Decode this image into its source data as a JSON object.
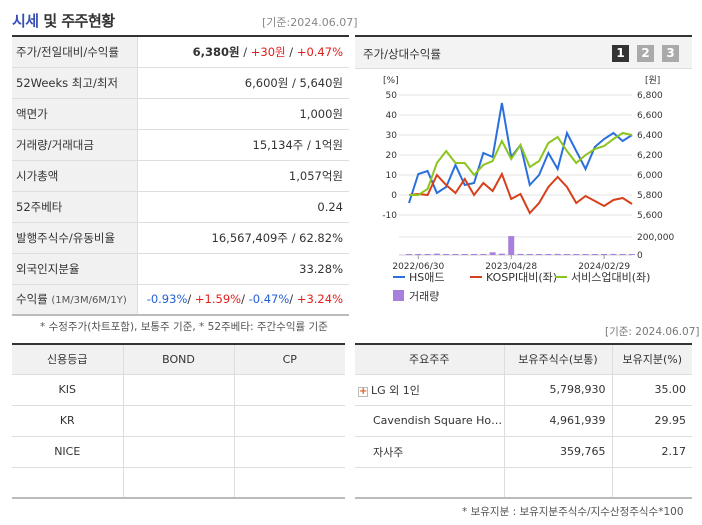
{
  "header": {
    "title_highlight": "시세",
    "title_rest": " 및 주주현황",
    "date": "[기준:2024.06.07]"
  },
  "info": [
    {
      "label": "주가/전일대비/수익률",
      "price": "6,380원",
      "change": "+30원",
      "rate": "+0.47%"
    },
    {
      "label": "52Weeks 최고/최저",
      "value": "6,600원 / 5,640원"
    },
    {
      "label": "액면가",
      "value": "1,000원"
    },
    {
      "label": "거래량/거래대금",
      "value": "15,134주 / 1억원"
    },
    {
      "label": "시가총액",
      "value": "1,057억원"
    },
    {
      "label": "52주베타",
      "value": "0.24"
    },
    {
      "label": "발행주식수/유동비율",
      "value": "16,567,409주 / 62.82%"
    },
    {
      "label": "외국인지분율",
      "value": "33.28%"
    },
    {
      "label": "수익률",
      "sub": "(1M/3M/6M/1Y)",
      "r1": "-0.93%",
      "r2": "+1.59%",
      "r3": "-0.47%",
      "r4": "+3.24%"
    }
  ],
  "note1": "* 수정주가(차트포함), 보통주 기준, * 52주베타: 주간수익률 기준",
  "chart_panel": {
    "title": "주가/상대수익률",
    "pages": [
      "1",
      "2",
      "3"
    ],
    "active_page": "1"
  },
  "chart_data": {
    "type": "line",
    "left_unit": "[%]",
    "right_unit": "[원]",
    "left_ticks": [
      "50",
      "40",
      "30",
      "20",
      "10",
      "0",
      "-10"
    ],
    "right_ticks": [
      "6,800",
      "6,600",
      "6,400",
      "6,200",
      "6,000",
      "5,800",
      "5,600"
    ],
    "volume_ticks": [
      "200,000",
      "0"
    ],
    "x_labels": [
      "2022/06/30",
      "2023/04/28",
      "2024/02/29"
    ],
    "ylim_left": [
      -10,
      50
    ],
    "ylim_right": [
      5600,
      6800
    ],
    "ylim_volume": [
      0,
      200000
    ],
    "series": [
      {
        "name": "HS애드",
        "color": "#2a6fdc",
        "values": [
          -4,
          10.5,
          12,
          1,
          4,
          15,
          5,
          6,
          21,
          19,
          46,
          19,
          25,
          5,
          10,
          21,
          13,
          31,
          22,
          13,
          24,
          28,
          31,
          27,
          30
        ]
      },
      {
        "name": "KOSPI대비(좌)",
        "color": "#d6401a",
        "values": [
          0,
          0.5,
          0,
          10,
          5,
          1,
          8,
          0,
          6,
          2,
          10.5,
          -2,
          0.5,
          -9,
          -4,
          4,
          9,
          4,
          -4,
          -0.5,
          -3,
          -5.5,
          -2.5,
          -1.5,
          -4.5
        ]
      },
      {
        "name": "서비스업대비(좌)",
        "color": "#8cc51e",
        "values": [
          0,
          0,
          3,
          16,
          22,
          16,
          16,
          10,
          15,
          17,
          27,
          18,
          25,
          14,
          17,
          26,
          29,
          22,
          16,
          20,
          23,
          24.5,
          28,
          31,
          30
        ]
      }
    ],
    "volume": {
      "name": "거래량",
      "color": "#a77fdc",
      "values": [
        5000,
        6000,
        8000,
        15000,
        5000,
        6000,
        5000,
        5000,
        5000,
        30000,
        15000,
        210000,
        12000,
        6000,
        5000,
        5000,
        12000,
        7000,
        6000,
        6000,
        6000,
        6000,
        12000,
        10000,
        5000
      ]
    }
  },
  "date2": "[기준: 2024.06.07]",
  "credit": {
    "headers": [
      "신용등급",
      "BOND",
      "CP"
    ],
    "rows": [
      [
        "KIS",
        "",
        ""
      ],
      [
        "KR",
        "",
        ""
      ],
      [
        "NICE",
        "",
        ""
      ],
      [
        "",
        "",
        ""
      ]
    ]
  },
  "holders": {
    "headers": [
      "주요주주",
      "보유주식수(보통)",
      "보유지분(%)"
    ],
    "rows": [
      {
        "name": "LG 외 1인",
        "shares": "5,798,930",
        "pct": "35.00",
        "expand": true
      },
      {
        "name": "Cavendish Square Holding",
        "shares": "4,961,939",
        "pct": "29.95"
      },
      {
        "name": "자사주",
        "shares": "359,765",
        "pct": "2.17"
      },
      {
        "name": "",
        "shares": "",
        "pct": ""
      }
    ]
  },
  "note2": "* 보유지분 : 보유지분주식수/지수산정주식수*100"
}
